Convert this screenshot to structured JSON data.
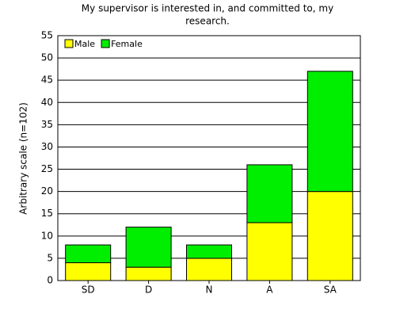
{
  "chart_data": {
    "type": "stacked_bar",
    "title": [
      "My supervisor is interested in, and committed to, my",
      "research."
    ],
    "y_label": "Arbitrary scale (n=102)",
    "categories": [
      "SD",
      "D",
      "N",
      "A",
      "SA"
    ],
    "series": [
      {
        "name": "Male",
        "color": "#ffff00",
        "values": [
          4,
          3,
          5,
          13,
          20
        ]
      },
      {
        "name": "Female",
        "color": "#00ee00",
        "values": [
          4,
          9,
          3,
          13,
          27
        ]
      }
    ],
    "ylim": [
      0,
      55
    ],
    "yticks": [
      0,
      5,
      10,
      15,
      20,
      25,
      30,
      35,
      40,
      45,
      50,
      55
    ],
    "grid": true,
    "legend": "top-left"
  }
}
